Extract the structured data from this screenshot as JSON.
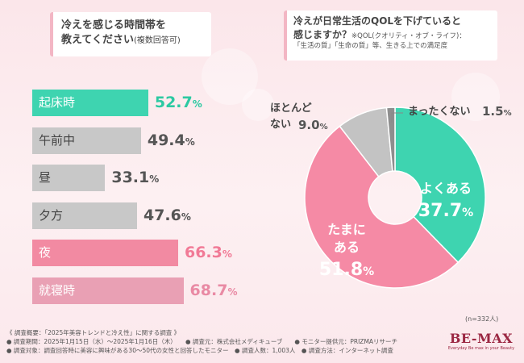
{
  "left_panel": {
    "title_line1": "冷えを感じる時間帯を",
    "title_line2": "教えてください",
    "title_note": "(複数回答可)"
  },
  "right_panel": {
    "title_line1": "冷えが日常生活のQOLを下げていると",
    "title_line2": "感じますか？",
    "note_line1": "※QOL(クオリティ・オブ・ライフ)：",
    "note_line2": "「生活の質」「生命の質」等、生きる上での満足度"
  },
  "chart_data": [
    {
      "type": "bar",
      "orientation": "horizontal",
      "title": "冷えを感じる時間帯を教えてください(複数回答可)",
      "unit": "%",
      "categories": [
        "起床時",
        "午前中",
        "昼",
        "夕方",
        "夜",
        "就寝時"
      ],
      "values": [
        52.7,
        49.4,
        33.1,
        47.6,
        66.3,
        68.7
      ],
      "value_labels": [
        "52.7",
        "49.4",
        "33.1",
        "47.6",
        "66.3",
        "68.7"
      ],
      "highlight": [
        true,
        false,
        false,
        false,
        true,
        true
      ],
      "colors": [
        "#3ed4b0",
        "#c8c8c8",
        "#c8c8c8",
        "#c8c8c8",
        "#f28aa2",
        "#e9a0b4"
      ],
      "value_colors": [
        "#2cc9a2",
        "#555555",
        "#555555",
        "#555555",
        "#f17a96",
        "#e98aa4"
      ]
    },
    {
      "type": "pie",
      "donut": true,
      "title": "冷えが日常生活のQOLを下げていると感じますか？",
      "unit": "%",
      "slices": [
        {
          "label": "よくある",
          "value": 37.7,
          "color": "#3ed4b0"
        },
        {
          "label": "たまにある",
          "value": 51.8,
          "color": "#f58aa5"
        },
        {
          "label": "ほとんどない",
          "value": 9.0,
          "color": "#c3c3c3"
        },
        {
          "label": "まったくない",
          "value": 1.5,
          "color": "#8e8e8e"
        }
      ],
      "inner_labels": {
        "yoku": "よくある",
        "yoku_value": "37.7",
        "tamani_1": "たまに",
        "tamani_2": "ある",
        "tamani_value": "51.8"
      },
      "outer_labels": {
        "hotondo_1": "ほとんど",
        "hotondo_2": "ない",
        "hotondo_value": "9.0",
        "mattaku": "まったくない",
        "mattaku_value": "1.5"
      },
      "n_label": "(n=332人)"
    }
  ],
  "footer": {
    "line1": "《 調査概要：「2025年美容トレンドと冷え性」に関する調査 》",
    "line2": "● 調査期間：2025年1月15日（水）～2025年1月16日（木）　　● 調査元：株式会社メディキューブ　　● モニター提供元：PRIZMAリサーチ",
    "line3": "● 調査対象：調査回答時に美容に興味がある30～50代の女性と回答したモニター　● 調査人数：1,003人　● 調査方法：インターネット調査"
  },
  "logo": {
    "main": "BE-MAX",
    "tagline": "Everyday Be max in your Beauty"
  }
}
